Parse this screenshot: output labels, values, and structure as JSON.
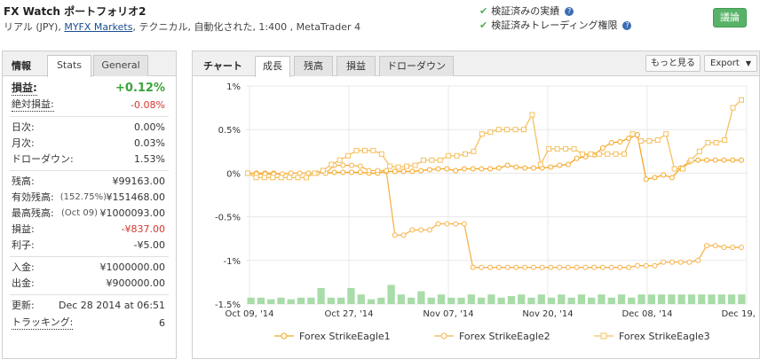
{
  "header": {
    "title": "FX Watch ポートフォリオ2",
    "sub_prefix": "リアル (JPY), ",
    "sub_link": "MYFX Markets",
    "sub_suffix": ", テクニカル, 自動化された, 1:400 , MetaTrader 4",
    "verify1": "検証済みの実績",
    "verify2": "検証済みトレーディング権限",
    "discuss_button": "議論"
  },
  "left_panel": {
    "title": "情報",
    "tabs": [
      "Stats",
      "General"
    ],
    "gain_label": "損益:",
    "gain_value": "+0.12%",
    "abs_gain_label": "絶対損益:",
    "abs_gain_value": "-0.08%",
    "daily_label": "日次:",
    "daily_value": "0.00%",
    "monthly_label": "月次:",
    "monthly_value": "0.03%",
    "drawdown_label": "ドローダウン:",
    "drawdown_value": "1.53%",
    "balance_label": "残高:",
    "balance_value": "¥99163.00",
    "equity_label": "有効残高:",
    "equity_pct": "(152.75%)",
    "equity_value": "¥151468.00",
    "highest_label": "最高残高:",
    "highest_date": "(Oct 09)",
    "highest_value": "¥1000093.00",
    "profit_label": "損益:",
    "profit_value": "-¥837.00",
    "interest_label": "利子:",
    "interest_value": "-¥5.00",
    "deposits_label": "入金:",
    "deposits_value": "¥1000000.00",
    "withdrawals_label": "出金:",
    "withdrawals_value": "¥900000.00",
    "updated_label": "更新:",
    "updated_value": "Dec 28 2014 at 06:51",
    "tracking_label": "トラッキング:",
    "tracking_value": "6"
  },
  "right_panel": {
    "title": "チャート",
    "tabs": [
      "成長",
      "残高",
      "損益",
      "ドローダウン"
    ],
    "more_button": "もっと見る",
    "export_button": "Export"
  },
  "chart_data": {
    "type": "line",
    "y_ticks": [
      "1%",
      "0.5%",
      "0%",
      "-0.5%",
      "-1%",
      "-1.5%"
    ],
    "x_ticks": [
      "Oct 09, '14",
      "Oct 27, '14",
      "Nov 07, '14",
      "Nov 20, '14",
      "Dec 08, '14",
      "Dec 19, '14"
    ],
    "ylim": [
      -1.5,
      1.0
    ],
    "grid": true,
    "legend_placement": "bottom",
    "series": [
      {
        "name": "Forex StrikeEagle1",
        "color": "#f5a623",
        "values": [
          0,
          0,
          0,
          0,
          -0.01,
          0,
          0,
          0,
          0,
          0,
          0.01,
          0.01,
          0.01,
          0.01,
          0,
          0,
          0.02,
          0.02,
          0.02,
          0.02,
          0.03,
          0.04,
          0.05,
          0.05,
          0.03,
          0.05,
          0.05,
          0.05,
          0.05,
          0.06,
          0.09,
          0.07,
          0.06,
          0.06,
          0.06,
          0.07,
          0.09,
          0.1,
          0.17,
          0.19,
          0.21,
          0.29,
          0.35,
          0.36,
          0.4,
          0.44,
          -0.07,
          -0.05,
          -0.02,
          -0.05,
          0.06,
          0.13,
          0.15,
          0.15,
          0.15,
          0.15,
          0.15,
          0.15
        ]
      },
      {
        "name": "Forex StrikeEagle2",
        "color": "#f5b44a",
        "values": [
          0,
          -0.01,
          -0.01,
          -0.01,
          -0.01,
          0,
          0,
          0,
          0,
          0,
          0.09,
          0.09,
          0.09,
          0.08,
          0.03,
          0.03,
          0.03,
          -0.71,
          -0.71,
          -0.65,
          -0.65,
          -0.65,
          -0.58,
          -0.58,
          -0.58,
          -0.58,
          -1.08,
          -1.08,
          -1.08,
          -1.08,
          -1.08,
          -1.08,
          -1.08,
          -1.08,
          -1.08,
          -1.08,
          -1.08,
          -1.08,
          -1.08,
          -1.08,
          -1.08,
          -1.08,
          -1.08,
          -1.08,
          -1.08,
          -1.06,
          -1.06,
          -1.06,
          -1.02,
          -1.02,
          -1.02,
          -1.02,
          -1.0,
          -0.83,
          -0.83,
          -0.85,
          -0.85,
          -0.85
        ]
      },
      {
        "name": "Forex StrikeEagle3",
        "color": "#f5c060",
        "values": [
          0,
          -0.05,
          -0.05,
          -0.05,
          -0.05,
          -0.05,
          -0.05,
          -0.05,
          0,
          0.03,
          0.1,
          0.15,
          0.2,
          0.26,
          0.26,
          0.26,
          0.22,
          0.08,
          0.07,
          0.08,
          0.09,
          0.15,
          0.15,
          0.15,
          0.2,
          0.2,
          0.22,
          0.25,
          0.45,
          0.47,
          0.5,
          0.5,
          0.5,
          0.5,
          0.67,
          0.1,
          0.28,
          0.28,
          0.28,
          0.28,
          0.22,
          0.22,
          0.22,
          0.22,
          0.22,
          0.22,
          0.45,
          0.37,
          0.37,
          0.38,
          0.45,
          0.05,
          0.05,
          0.15,
          0.25,
          0.35,
          0.35,
          0.38,
          0.75,
          0.84
        ]
      }
    ],
    "bars": [
      0.2,
      0.2,
      0.15,
      0.2,
      0.15,
      0.2,
      0.2,
      0.5,
      0.2,
      0.2,
      0.5,
      0.3,
      0.15,
      0.2,
      0.6,
      0.3,
      0.2,
      0.4,
      0.2,
      0.3,
      0.2,
      0.2,
      0.3,
      0.2,
      0.3,
      0.2,
      0.25,
      0.3,
      0.2,
      0.3,
      0.2,
      0.3,
      0.2,
      0.3,
      0.2,
      0.3,
      0.2,
      0.3,
      0.2,
      0.3,
      0.3,
      0.3,
      0.3,
      0.3,
      0.3,
      0.3,
      0.3,
      0.3,
      0.3,
      0.3
    ]
  }
}
